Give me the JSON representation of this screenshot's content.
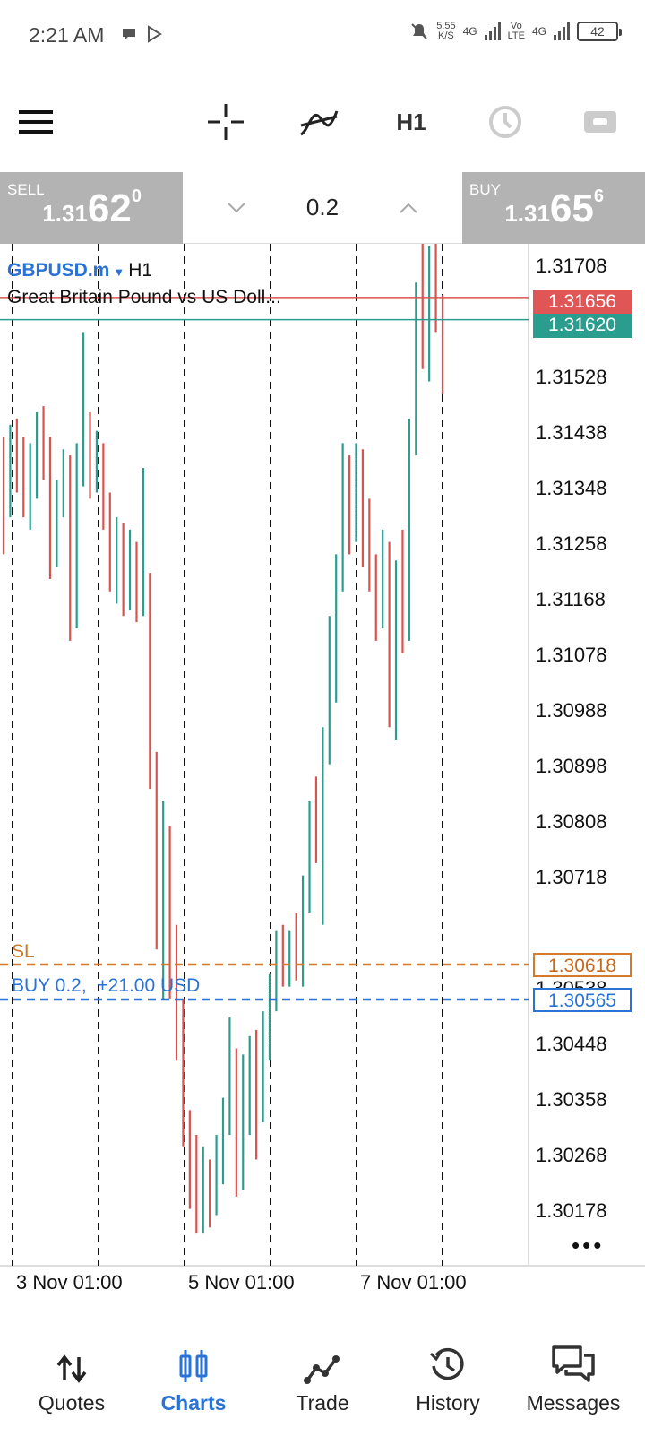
{
  "status_bar": {
    "time": "2:21 AM",
    "net_speed_value": "5.55",
    "net_speed_unit": "K/S",
    "sim1": "4G",
    "volte_top": "Vo",
    "volte_bottom": "LTE",
    "sim2": "4G",
    "battery": "42"
  },
  "toolbar": {
    "timeframe": "H1",
    "icons": [
      "menu-icon",
      "crosshair-icon",
      "indicators-icon",
      "clock-icon",
      "trade-levels-icon"
    ]
  },
  "trade_bar": {
    "sell_label": "SELL",
    "sell_prefix": "1.31",
    "sell_big": "62",
    "sell_sup": "0",
    "buy_label": "BUY",
    "buy_prefix": "1.31",
    "buy_big": "65",
    "buy_sup": "6",
    "lot": "0.2"
  },
  "chart": {
    "symbol": "GBPUSD.m",
    "timeframe": "H1",
    "description": "Great Britain Pound vs US Doll...",
    "price_axis": [
      "1.31708",
      "1.31528",
      "1.31438",
      "1.31348",
      "1.31258",
      "1.31168",
      "1.31078",
      "1.30988",
      "1.30898",
      "1.30808",
      "1.30718",
      "1.30538",
      "1.30448",
      "1.30358",
      "1.30268",
      "1.30178"
    ],
    "time_axis": [
      "3 Nov 01:00",
      "5 Nov 01:00",
      "7 Nov 01:00"
    ],
    "ask_price": "1.31656",
    "bid_price": "1.31620",
    "sl_label": "SL",
    "sl_price": "1.30618",
    "position_label": "BUY 0.2,",
    "position_profit": "+21.00 USD",
    "position_price": "1.30565",
    "colors": {
      "bull": "#2a9d8f",
      "bear": "#d9534f",
      "sl": "#d47a2a",
      "position": "#2a72d5"
    }
  },
  "chart_data": {
    "type": "candlestick",
    "yaxis_ticks": [
      1.31708,
      1.31528,
      1.31438,
      1.31348,
      1.31258,
      1.31168,
      1.31078,
      1.30988,
      1.30898,
      1.30808,
      1.30718,
      1.30538,
      1.30448,
      1.30358,
      1.30268,
      1.30178
    ],
    "x_ticks": [
      "3 Nov 01:00",
      "5 Nov 01:00",
      "7 Nov 01:00"
    ],
    "ylim": [
      1.3015,
      1.3178
    ],
    "horizontal_lines": [
      {
        "name": "ask",
        "value": 1.31656
      },
      {
        "name": "bid",
        "value": 1.3162
      },
      {
        "name": "SL",
        "value": 1.30618
      },
      {
        "name": "BUY 0.2",
        "value": 1.30565
      }
    ],
    "candles": [
      {
        "o": 1.314,
        "h": 1.3143,
        "l": 1.3124,
        "c": 1.3136
      },
      {
        "o": 1.3136,
        "h": 1.3145,
        "l": 1.313,
        "c": 1.3142
      },
      {
        "o": 1.3142,
        "h": 1.3146,
        "l": 1.3134,
        "c": 1.3138
      },
      {
        "o": 1.3138,
        "h": 1.3143,
        "l": 1.313,
        "c": 1.3135
      },
      {
        "o": 1.3135,
        "h": 1.3142,
        "l": 1.3128,
        "c": 1.314
      },
      {
        "o": 1.314,
        "h": 1.3147,
        "l": 1.3133,
        "c": 1.3144
      },
      {
        "o": 1.3144,
        "h": 1.3148,
        "l": 1.3136,
        "c": 1.314
      },
      {
        "o": 1.314,
        "h": 1.3143,
        "l": 1.312,
        "c": 1.3126
      },
      {
        "o": 1.3126,
        "h": 1.3136,
        "l": 1.3122,
        "c": 1.3134
      },
      {
        "o": 1.3134,
        "h": 1.3141,
        "l": 1.313,
        "c": 1.3138
      },
      {
        "o": 1.3138,
        "h": 1.314,
        "l": 1.311,
        "c": 1.3114
      },
      {
        "o": 1.3114,
        "h": 1.3142,
        "l": 1.3112,
        "c": 1.3139
      },
      {
        "o": 1.3139,
        "h": 1.316,
        "l": 1.3135,
        "c": 1.3144
      },
      {
        "o": 1.3144,
        "h": 1.3147,
        "l": 1.3133,
        "c": 1.3136
      },
      {
        "o": 1.3136,
        "h": 1.3144,
        "l": 1.3134,
        "c": 1.3141
      },
      {
        "o": 1.3141,
        "h": 1.3142,
        "l": 1.3128,
        "c": 1.3131
      },
      {
        "o": 1.3131,
        "h": 1.3134,
        "l": 1.3118,
        "c": 1.3123
      },
      {
        "o": 1.3123,
        "h": 1.313,
        "l": 1.3116,
        "c": 1.3126
      },
      {
        "o": 1.3126,
        "h": 1.3129,
        "l": 1.3114,
        "c": 1.3117
      },
      {
        "o": 1.3117,
        "h": 1.3128,
        "l": 1.3115,
        "c": 1.3124
      },
      {
        "o": 1.3124,
        "h": 1.3126,
        "l": 1.3113,
        "c": 1.3116
      },
      {
        "o": 1.3116,
        "h": 1.3138,
        "l": 1.3114,
        "c": 1.312
      },
      {
        "o": 1.312,
        "h": 1.3121,
        "l": 1.3086,
        "c": 1.309
      },
      {
        "o": 1.309,
        "h": 1.3092,
        "l": 1.306,
        "c": 1.3064
      },
      {
        "o": 1.3064,
        "h": 1.3084,
        "l": 1.3052,
        "c": 1.3078
      },
      {
        "o": 1.3078,
        "h": 1.308,
        "l": 1.3052,
        "c": 1.3058
      },
      {
        "o": 1.3058,
        "h": 1.3064,
        "l": 1.3042,
        "c": 1.3046
      },
      {
        "o": 1.3046,
        "h": 1.3052,
        "l": 1.3028,
        "c": 1.3032
      },
      {
        "o": 1.3032,
        "h": 1.3034,
        "l": 1.3018,
        "c": 1.3022
      },
      {
        "o": 1.3022,
        "h": 1.303,
        "l": 1.3014,
        "c": 1.3017
      },
      {
        "o": 1.3017,
        "h": 1.3028,
        "l": 1.3014,
        "c": 1.3024
      },
      {
        "o": 1.3024,
        "h": 1.3026,
        "l": 1.3015,
        "c": 1.3019
      },
      {
        "o": 1.3019,
        "h": 1.303,
        "l": 1.3017,
        "c": 1.3026
      },
      {
        "o": 1.3026,
        "h": 1.3036,
        "l": 1.3022,
        "c": 1.3033
      },
      {
        "o": 1.3033,
        "h": 1.3049,
        "l": 1.303,
        "c": 1.3042
      },
      {
        "o": 1.3042,
        "h": 1.3044,
        "l": 1.302,
        "c": 1.3024
      },
      {
        "o": 1.3024,
        "h": 1.3043,
        "l": 1.3021,
        "c": 1.3038
      },
      {
        "o": 1.3038,
        "h": 1.3046,
        "l": 1.303,
        "c": 1.3044
      },
      {
        "o": 1.3044,
        "h": 1.3047,
        "l": 1.3026,
        "c": 1.3034
      },
      {
        "o": 1.3034,
        "h": 1.305,
        "l": 1.3032,
        "c": 1.3046
      },
      {
        "o": 1.3046,
        "h": 1.3056,
        "l": 1.3042,
        "c": 1.3053
      },
      {
        "o": 1.3053,
        "h": 1.3063,
        "l": 1.305,
        "c": 1.306
      },
      {
        "o": 1.306,
        "h": 1.3064,
        "l": 1.3054,
        "c": 1.3057
      },
      {
        "o": 1.3057,
        "h": 1.3063,
        "l": 1.3054,
        "c": 1.3061
      },
      {
        "o": 1.3061,
        "h": 1.3066,
        "l": 1.3055,
        "c": 1.3058
      },
      {
        "o": 1.3058,
        "h": 1.3072,
        "l": 1.3054,
        "c": 1.3069
      },
      {
        "o": 1.3069,
        "h": 1.3084,
        "l": 1.3066,
        "c": 1.3081
      },
      {
        "o": 1.3081,
        "h": 1.3088,
        "l": 1.3074,
        "c": 1.3076
      },
      {
        "o": 1.3076,
        "h": 1.3096,
        "l": 1.3064,
        "c": 1.3093
      },
      {
        "o": 1.3093,
        "h": 1.3114,
        "l": 1.309,
        "c": 1.311
      },
      {
        "o": 1.311,
        "h": 1.3124,
        "l": 1.31,
        "c": 1.312
      },
      {
        "o": 1.312,
        "h": 1.3142,
        "l": 1.3118,
        "c": 1.3138
      },
      {
        "o": 1.3138,
        "h": 1.314,
        "l": 1.3124,
        "c": 1.3128
      },
      {
        "o": 1.3128,
        "h": 1.3142,
        "l": 1.3126,
        "c": 1.3139
      },
      {
        "o": 1.3139,
        "h": 1.3141,
        "l": 1.3122,
        "c": 1.3126
      },
      {
        "o": 1.3126,
        "h": 1.3133,
        "l": 1.3118,
        "c": 1.3122
      },
      {
        "o": 1.3122,
        "h": 1.3124,
        "l": 1.311,
        "c": 1.3114
      },
      {
        "o": 1.3114,
        "h": 1.3128,
        "l": 1.3112,
        "c": 1.3124
      },
      {
        "o": 1.3124,
        "h": 1.3126,
        "l": 1.3096,
        "c": 1.31
      },
      {
        "o": 1.31,
        "h": 1.3123,
        "l": 1.3094,
        "c": 1.312
      },
      {
        "o": 1.312,
        "h": 1.3128,
        "l": 1.3108,
        "c": 1.3112
      },
      {
        "o": 1.3112,
        "h": 1.3146,
        "l": 1.311,
        "c": 1.3142
      },
      {
        "o": 1.3142,
        "h": 1.3168,
        "l": 1.314,
        "c": 1.3164
      },
      {
        "o": 1.3164,
        "h": 1.3175,
        "l": 1.3154,
        "c": 1.3157
      },
      {
        "o": 1.3157,
        "h": 1.3174,
        "l": 1.3152,
        "c": 1.3168
      },
      {
        "o": 1.3168,
        "h": 1.3176,
        "l": 1.316,
        "c": 1.3163
      },
      {
        "o": 1.3163,
        "h": 1.3166,
        "l": 1.315,
        "c": 1.3162
      }
    ]
  },
  "bottom_nav": {
    "items": [
      {
        "label": "Quotes",
        "icon": "quotes-icon"
      },
      {
        "label": "Charts",
        "icon": "charts-icon"
      },
      {
        "label": "Trade",
        "icon": "trade-icon"
      },
      {
        "label": "History",
        "icon": "history-icon"
      },
      {
        "label": "Messages",
        "icon": "messages-icon"
      }
    ],
    "active_index": 1
  }
}
